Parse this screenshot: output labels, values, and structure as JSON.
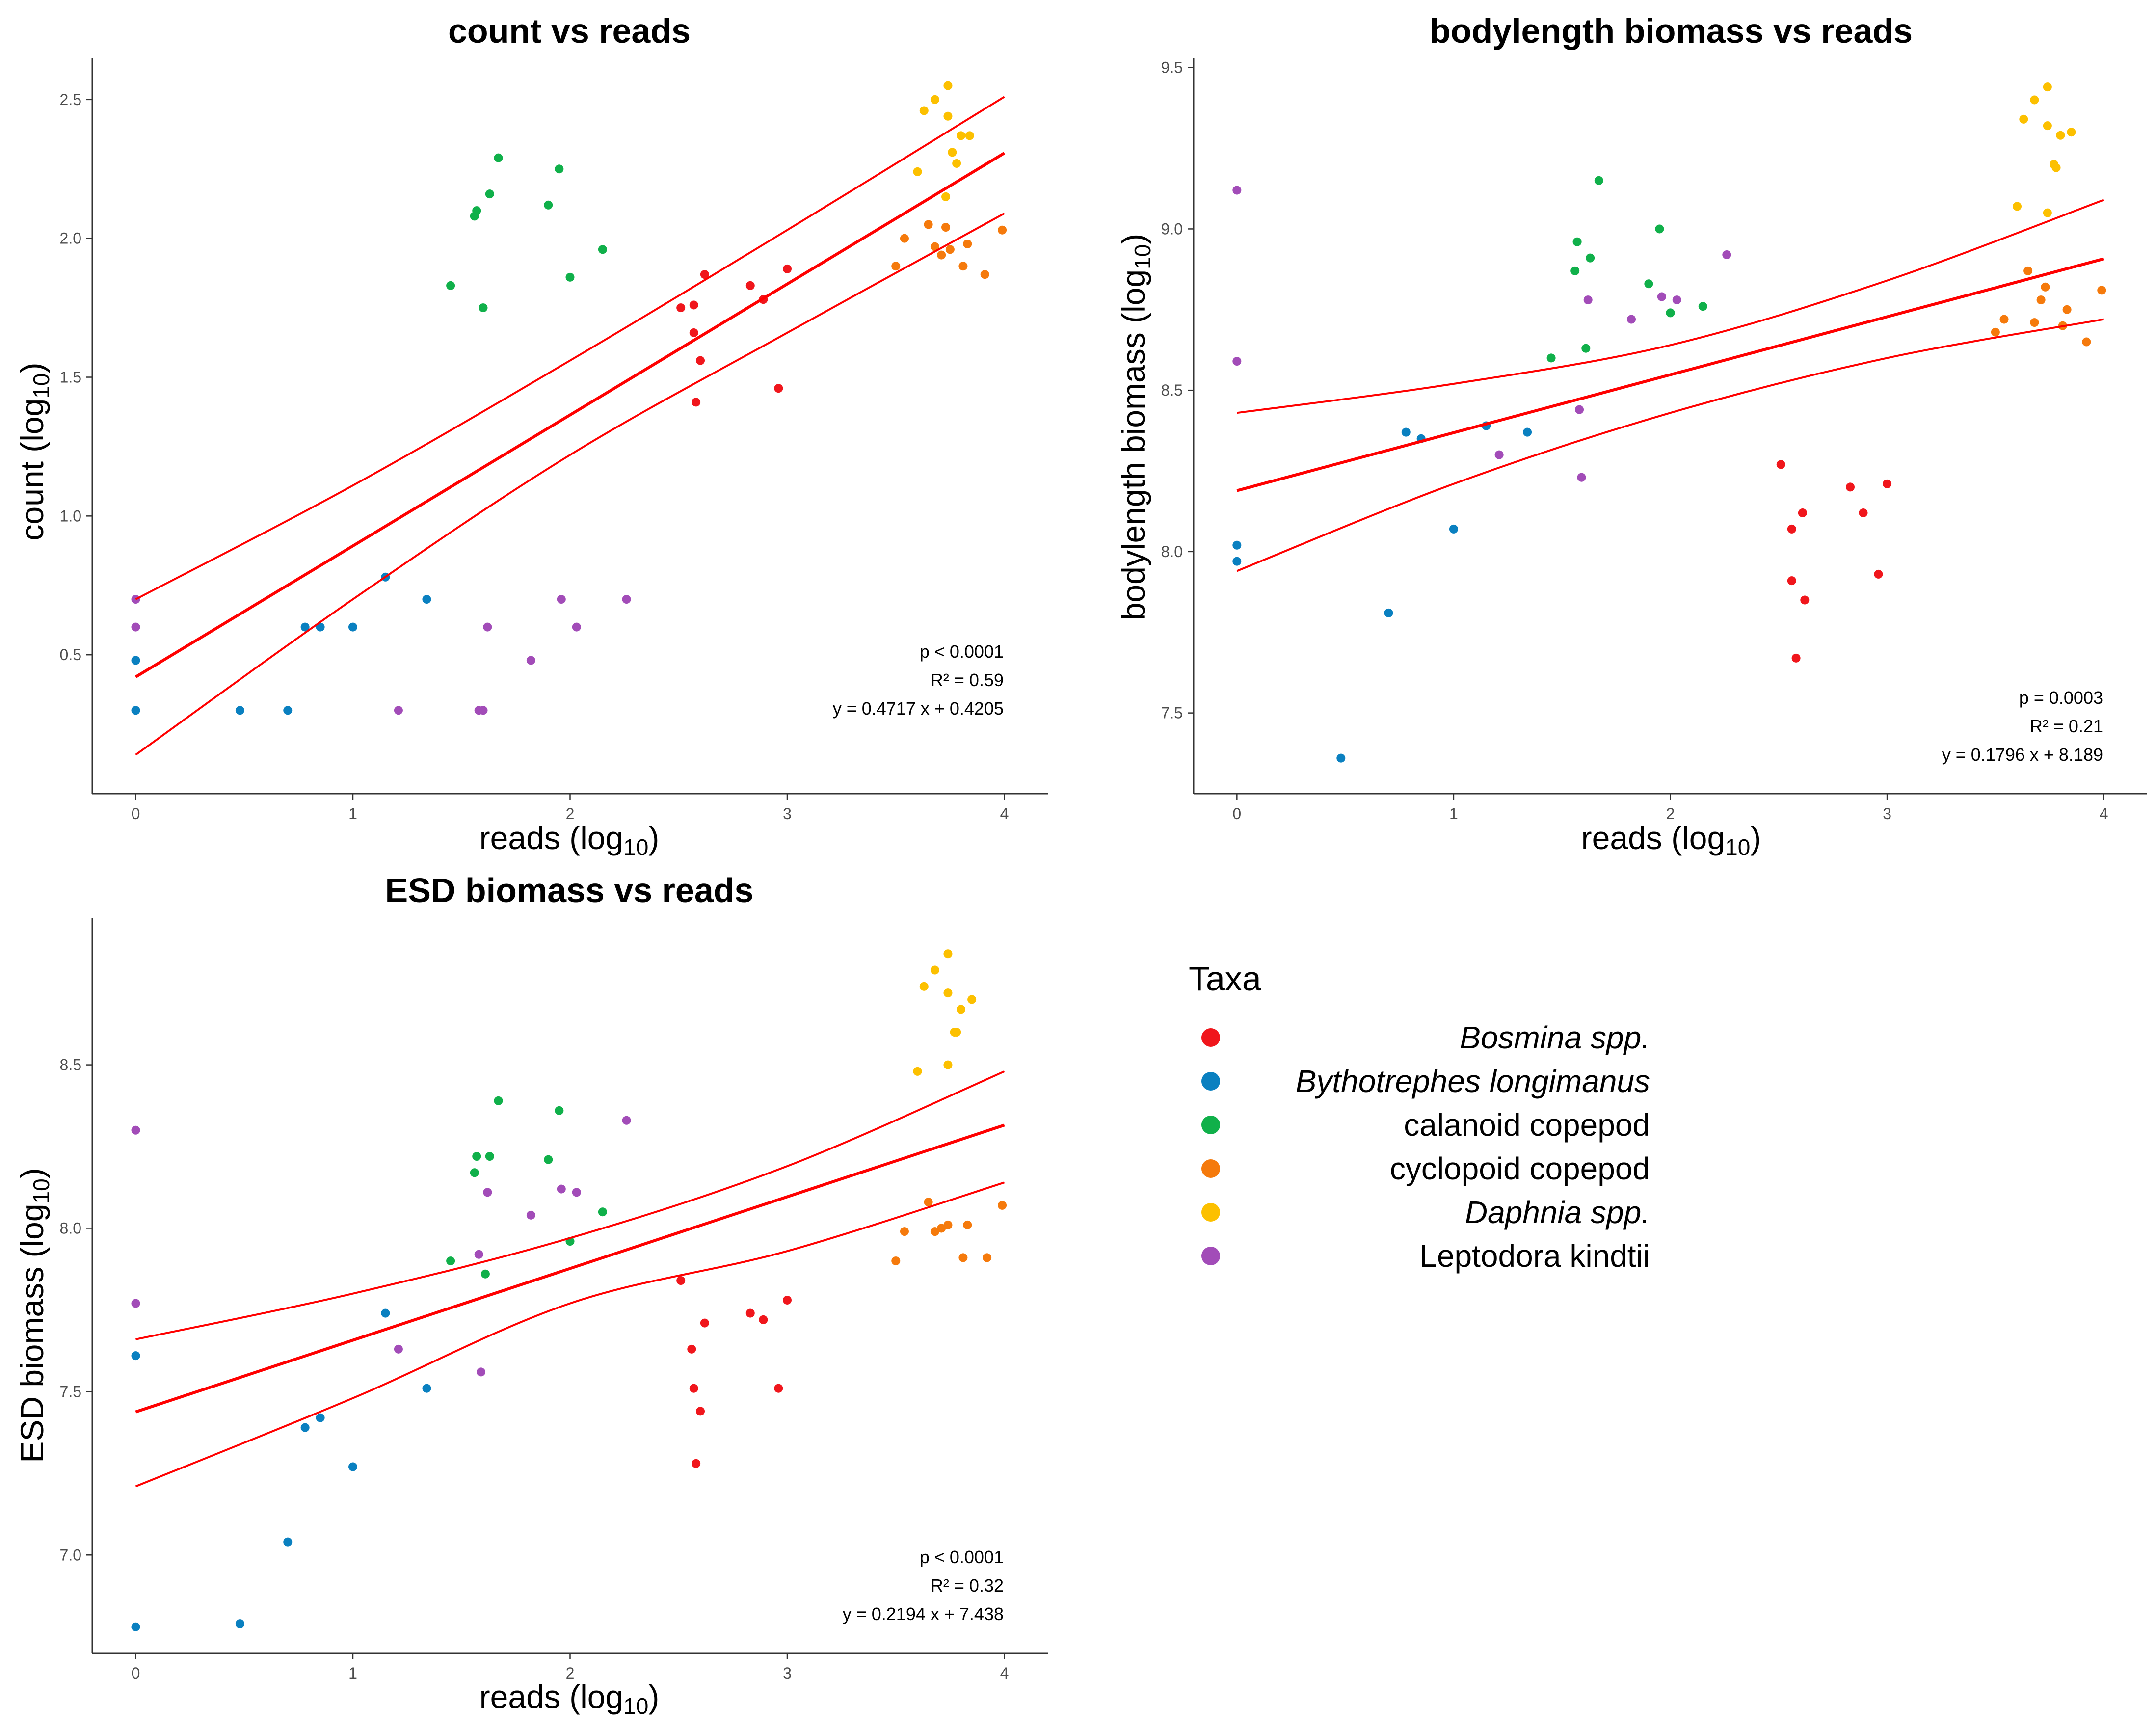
{
  "colors": {
    "Bosmina": "#f0161c",
    "Bythotrephes": "#0a80c0",
    "Calanoid": "#10b04a",
    "Cyclopoid": "#f57a0c",
    "Daphnia": "#fcc000",
    "Leptodora": "#a24cb8",
    "fit": "#ff0000"
  },
  "legend": {
    "title": "Taxa",
    "items": [
      {
        "key": "Bosmina",
        "label": "Bosmina spp.",
        "italic": true
      },
      {
        "key": "Bythotrephes",
        "label": "Bythotrephes longimanus",
        "italic": true
      },
      {
        "key": "Calanoid",
        "label": "calanoid copepod",
        "italic": false
      },
      {
        "key": "Cyclopoid",
        "label": "cyclopoid copepod",
        "italic": false
      },
      {
        "key": "Daphnia",
        "label": "Daphnia spp.",
        "italic": true
      },
      {
        "key": "Leptodora",
        "label": "Leptodora kindtii",
        "italic": false
      }
    ]
  },
  "chart_data": [
    {
      "id": "count",
      "type": "scatter",
      "title": "count vs reads",
      "xlabel_main": "reads (log",
      "xlabel_sub": "10",
      "xlabel_end": ")",
      "ylabel_main": "count (log",
      "ylabel_sub": "10",
      "ylabel_end": ")",
      "xlim": [
        -0.2,
        4.2
      ],
      "ylim": [
        0.0,
        2.65
      ],
      "xticks": [
        0,
        1,
        2,
        3,
        4
      ],
      "xtick_labels": [
        "0",
        "1",
        "2",
        "3",
        "4"
      ],
      "yticks": [
        0.5,
        1.0,
        1.5,
        2.0,
        2.5
      ],
      "ytick_labels": [
        "0.5",
        "1.0",
        "1.5",
        "2.0",
        "2.5"
      ],
      "stats": [
        "p < 0.0001",
        "R² = 0.59",
        "y = 0.4717 x + 0.4205"
      ],
      "fit": {
        "slope": 0.4717,
        "intercept": 0.4205,
        "ci_upper": [
          [
            0,
            0.7
          ],
          [
            1,
            1.11
          ],
          [
            2,
            1.56
          ],
          [
            3,
            2.03
          ],
          [
            4,
            2.51
          ]
        ],
        "ci_lower": [
          [
            0,
            0.14
          ],
          [
            1,
            0.7
          ],
          [
            2,
            1.22
          ],
          [
            3,
            1.66
          ],
          [
            4,
            2.09
          ]
        ]
      },
      "series": [
        {
          "key": "Bosmina",
          "points": [
            [
              2.51,
              1.75
            ],
            [
              2.57,
              1.76
            ],
            [
              2.62,
              1.87
            ],
            [
              2.57,
              1.66
            ],
            [
              2.6,
              1.56
            ],
            [
              2.58,
              1.41
            ],
            [
              2.83,
              1.83
            ],
            [
              2.89,
              1.78
            ],
            [
              3.0,
              1.89
            ],
            [
              2.96,
              1.46
            ]
          ]
        },
        {
          "key": "Bythotrephes",
          "points": [
            [
              0,
              0.48
            ],
            [
              0,
              0.3
            ],
            [
              0.48,
              0.3
            ],
            [
              0.7,
              0.3
            ],
            [
              0.78,
              0.6
            ],
            [
              0.85,
              0.6
            ],
            [
              1.0,
              0.6
            ],
            [
              1.15,
              0.78
            ],
            [
              1.34,
              0.7
            ]
          ]
        },
        {
          "key": "Calanoid",
          "points": [
            [
              1.45,
              1.83
            ],
            [
              1.56,
              2.08
            ],
            [
              1.57,
              2.1
            ],
            [
              1.6,
              1.75
            ],
            [
              1.63,
              2.16
            ],
            [
              1.67,
              2.29
            ],
            [
              1.9,
              2.12
            ],
            [
              1.95,
              2.25
            ],
            [
              2.0,
              1.86
            ],
            [
              2.15,
              1.96
            ]
          ]
        },
        {
          "key": "Cyclopoid",
          "points": [
            [
              3.5,
              1.9
            ],
            [
              3.54,
              2.0
            ],
            [
              3.65,
              2.05
            ],
            [
              3.68,
              1.97
            ],
            [
              3.71,
              1.94
            ],
            [
              3.73,
              2.04
            ],
            [
              3.75,
              1.96
            ],
            [
              3.81,
              1.9
            ],
            [
              3.83,
              1.98
            ],
            [
              3.91,
              1.87
            ],
            [
              3.99,
              2.03
            ]
          ]
        },
        {
          "key": "Daphnia",
          "points": [
            [
              3.6,
              2.24
            ],
            [
              3.63,
              2.46
            ],
            [
              3.68,
              2.5
            ],
            [
              3.74,
              2.55
            ],
            [
              3.74,
              2.44
            ],
            [
              3.76,
              2.31
            ],
            [
              3.78,
              2.27
            ],
            [
              3.73,
              2.15
            ],
            [
              3.8,
              2.37
            ],
            [
              3.84,
              2.37
            ]
          ]
        },
        {
          "key": "Leptodora",
          "points": [
            [
              0,
              0.7
            ],
            [
              0,
              0.6
            ],
            [
              1.21,
              0.3
            ],
            [
              1.58,
              0.3
            ],
            [
              1.6,
              0.3
            ],
            [
              1.62,
              0.6
            ],
            [
              1.82,
              0.48
            ],
            [
              1.96,
              0.7
            ],
            [
              2.03,
              0.6
            ],
            [
              2.26,
              0.7
            ]
          ]
        }
      ]
    },
    {
      "id": "bodylength",
      "type": "scatter",
      "title": "bodylength biomass vs reads",
      "xlabel_main": "reads (log",
      "xlabel_sub": "10",
      "xlabel_end": ")",
      "ylabel_main": "bodylength biomass (log",
      "ylabel_sub": "10",
      "ylabel_end": ")",
      "xlim": [
        -0.2,
        4.2
      ],
      "ylim": [
        7.25,
        9.53
      ],
      "xticks": [
        0,
        1,
        2,
        3,
        4
      ],
      "xtick_labels": [
        "0",
        "1",
        "2",
        "3",
        "4"
      ],
      "yticks": [
        7.5,
        8.0,
        8.5,
        9.0,
        9.5
      ],
      "ytick_labels": [
        "7.5",
        "8.0",
        "8.5",
        "9.0",
        "9.5"
      ],
      "stats": [
        "p = 0.0003",
        "R² = 0.21",
        "y = 0.1796 x + 8.189"
      ],
      "fit": {
        "slope": 0.1796,
        "intercept": 8.189,
        "ci_upper": [
          [
            0,
            8.43
          ],
          [
            1,
            8.52
          ],
          [
            2,
            8.64
          ],
          [
            3,
            8.84
          ],
          [
            4,
            9.09
          ]
        ],
        "ci_lower": [
          [
            0,
            7.94
          ],
          [
            1,
            8.21
          ],
          [
            2,
            8.43
          ],
          [
            3,
            8.6
          ],
          [
            4,
            8.72
          ]
        ]
      },
      "series": [
        {
          "key": "Bosmina",
          "points": [
            [
              2.51,
              8.27
            ],
            [
              2.56,
              8.07
            ],
            [
              2.61,
              8.12
            ],
            [
              2.56,
              7.91
            ],
            [
              2.62,
              7.85
            ],
            [
              2.58,
              7.67
            ],
            [
              2.83,
              8.2
            ],
            [
              2.89,
              8.12
            ],
            [
              3.0,
              8.21
            ],
            [
              2.96,
              7.93
            ]
          ]
        },
        {
          "key": "Bythotrephes",
          "points": [
            [
              0,
              8.02
            ],
            [
              0,
              7.97
            ],
            [
              0.48,
              7.36
            ],
            [
              0.7,
              7.81
            ],
            [
              0.78,
              8.37
            ],
            [
              0.85,
              8.35
            ],
            [
              1.0,
              8.07
            ],
            [
              1.15,
              8.39
            ],
            [
              1.34,
              8.37
            ]
          ]
        },
        {
          "key": "Calanoid",
          "points": [
            [
              1.45,
              8.6
            ],
            [
              1.56,
              8.87
            ],
            [
              1.57,
              8.96
            ],
            [
              1.61,
              8.63
            ],
            [
              1.63,
              8.91
            ],
            [
              1.67,
              9.15
            ],
            [
              1.9,
              8.83
            ],
            [
              1.95,
              9.0
            ],
            [
              2.0,
              8.74
            ],
            [
              2.15,
              8.76
            ]
          ]
        },
        {
          "key": "Cyclopoid",
          "points": [
            [
              3.5,
              8.68
            ],
            [
              3.54,
              8.72
            ],
            [
              3.65,
              8.87
            ],
            [
              3.68,
              8.71
            ],
            [
              3.71,
              8.78
            ],
            [
              3.73,
              8.82
            ],
            [
              3.81,
              8.7
            ],
            [
              3.83,
              8.75
            ],
            [
              3.92,
              8.65
            ],
            [
              3.99,
              8.81
            ]
          ]
        },
        {
          "key": "Daphnia",
          "points": [
            [
              3.6,
              9.07
            ],
            [
              3.63,
              9.34
            ],
            [
              3.68,
              9.4
            ],
            [
              3.74,
              9.44
            ],
            [
              3.74,
              9.32
            ],
            [
              3.77,
              9.2
            ],
            [
              3.78,
              9.19
            ],
            [
              3.74,
              9.05
            ],
            [
              3.8,
              9.29
            ],
            [
              3.85,
              9.3
            ]
          ]
        },
        {
          "key": "Leptodora",
          "points": [
            [
              0,
              9.12
            ],
            [
              0,
              8.59
            ],
            [
              1.21,
              8.3
            ],
            [
              1.58,
              8.44
            ],
            [
              1.59,
              8.23
            ],
            [
              1.62,
              8.78
            ],
            [
              1.82,
              8.72
            ],
            [
              1.96,
              8.79
            ],
            [
              2.03,
              8.78
            ],
            [
              2.26,
              8.92
            ]
          ]
        }
      ]
    },
    {
      "id": "esd",
      "type": "scatter",
      "title": "ESD biomass vs reads",
      "xlabel_main": "reads (log",
      "xlabel_sub": "10",
      "xlabel_end": ")",
      "ylabel_main": "ESD biomass (log",
      "ylabel_sub": "10",
      "ylabel_end": ")",
      "xlim": [
        -0.2,
        4.2
      ],
      "ylim": [
        6.7,
        8.95
      ],
      "xticks": [
        0,
        1,
        2,
        3,
        4
      ],
      "xtick_labels": [
        "0",
        "1",
        "2",
        "3",
        "4"
      ],
      "yticks": [
        7.0,
        7.5,
        8.0,
        8.5
      ],
      "ytick_labels": [
        "7.0",
        "7.5",
        "8.0",
        "8.5"
      ],
      "stats": [
        "p < 0.0001",
        "R² = 0.32",
        "y = 0.2194 x + 7.438"
      ],
      "fit": {
        "slope": 0.2194,
        "intercept": 7.438,
        "ci_upper": [
          [
            0,
            7.66
          ],
          [
            1,
            7.8
          ],
          [
            2,
            7.97
          ],
          [
            3,
            8.19
          ],
          [
            4,
            8.48
          ]
        ],
        "ci_lower": [
          [
            0,
            7.21
          ],
          [
            1,
            7.48
          ],
          [
            2,
            7.77
          ],
          [
            3,
            7.93
          ],
          [
            4,
            8.14
          ]
        ]
      },
      "series": [
        {
          "key": "Bosmina",
          "points": [
            [
              2.51,
              7.84
            ],
            [
              2.56,
              7.63
            ],
            [
              2.62,
              7.71
            ],
            [
              2.57,
              7.51
            ],
            [
              2.6,
              7.44
            ],
            [
              2.58,
              7.28
            ],
            [
              2.83,
              7.74
            ],
            [
              2.89,
              7.72
            ],
            [
              3.0,
              7.78
            ],
            [
              2.96,
              7.51
            ]
          ]
        },
        {
          "key": "Bythotrephes",
          "points": [
            [
              0,
              7.61
            ],
            [
              0,
              6.78
            ],
            [
              0.48,
              6.79
            ],
            [
              0.7,
              7.04
            ],
            [
              0.78,
              7.39
            ],
            [
              0.85,
              7.42
            ],
            [
              1.0,
              7.27
            ],
            [
              1.15,
              7.74
            ],
            [
              1.34,
              7.51
            ]
          ]
        },
        {
          "key": "Calanoid",
          "points": [
            [
              1.45,
              7.9
            ],
            [
              1.56,
              8.17
            ],
            [
              1.57,
              8.22
            ],
            [
              1.61,
              7.86
            ],
            [
              1.63,
              8.22
            ],
            [
              1.67,
              8.39
            ],
            [
              1.9,
              8.21
            ],
            [
              1.95,
              8.36
            ],
            [
              2.0,
              7.96
            ],
            [
              2.15,
              8.05
            ]
          ]
        },
        {
          "key": "Cyclopoid",
          "points": [
            [
              3.5,
              7.9
            ],
            [
              3.54,
              7.99
            ],
            [
              3.65,
              8.08
            ],
            [
              3.68,
              7.99
            ],
            [
              3.71,
              8.0
            ],
            [
              3.74,
              8.01
            ],
            [
              3.81,
              7.91
            ],
            [
              3.83,
              8.01
            ],
            [
              3.92,
              7.91
            ],
            [
              3.99,
              8.07
            ]
          ]
        },
        {
          "key": "Daphnia",
          "points": [
            [
              3.6,
              8.48
            ],
            [
              3.63,
              8.74
            ],
            [
              3.68,
              8.79
            ],
            [
              3.74,
              8.84
            ],
            [
              3.74,
              8.72
            ],
            [
              3.77,
              8.6
            ],
            [
              3.78,
              8.6
            ],
            [
              3.74,
              8.5
            ],
            [
              3.8,
              8.67
            ],
            [
              3.85,
              8.7
            ]
          ]
        },
        {
          "key": "Leptodora",
          "points": [
            [
              0,
              8.3
            ],
            [
              0,
              7.77
            ],
            [
              1.21,
              7.63
            ],
            [
              1.58,
              7.92
            ],
            [
              1.59,
              7.56
            ],
            [
              1.62,
              8.11
            ],
            [
              1.82,
              8.04
            ],
            [
              1.96,
              8.12
            ],
            [
              2.03,
              8.11
            ],
            [
              2.26,
              8.33
            ]
          ]
        }
      ]
    }
  ]
}
